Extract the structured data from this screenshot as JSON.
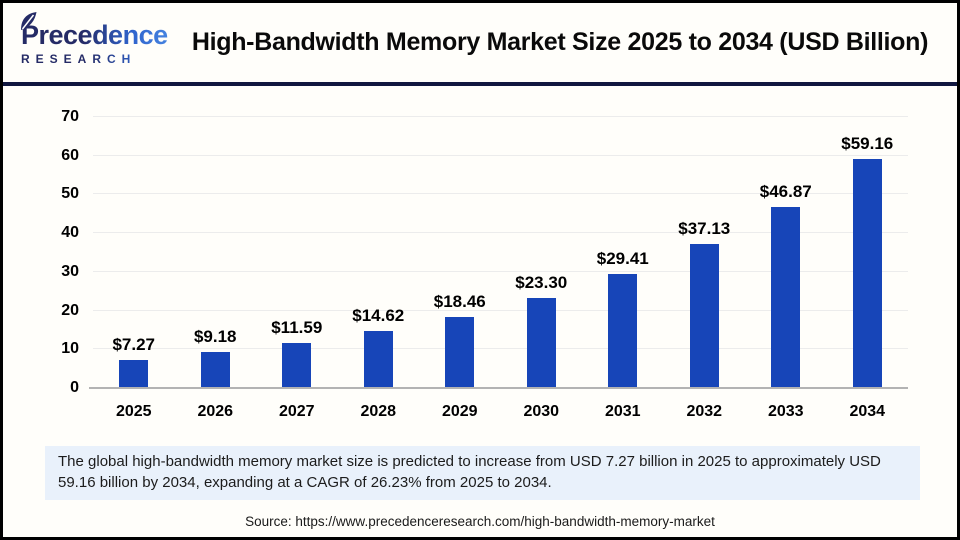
{
  "header": {
    "logo_line1": "Precedence",
    "logo_line2": "RESEARCH",
    "title": "High-Bandwidth Memory Market Size 2025 to 2034 (USD Billion)"
  },
  "chart_data": {
    "type": "bar",
    "title": "High-Bandwidth Memory Market Size 2025 to 2034 (USD Billion)",
    "categories": [
      "2025",
      "2026",
      "2027",
      "2028",
      "2029",
      "2030",
      "2031",
      "2032",
      "2033",
      "2034"
    ],
    "values": [
      7.27,
      9.18,
      11.59,
      14.62,
      18.46,
      23.3,
      29.41,
      37.13,
      46.87,
      59.16
    ],
    "value_labels": [
      "$7.27",
      "$9.18",
      "$11.59",
      "$14.62",
      "$18.46",
      "$23.30",
      "$29.41",
      "$37.13",
      "$46.87",
      "$59.16"
    ],
    "xlabel": "",
    "ylabel": "",
    "ylim": [
      0,
      70
    ],
    "yticks": [
      0,
      10,
      20,
      30,
      40,
      50,
      60,
      70
    ],
    "grid": true,
    "legend": false,
    "bar_color": "#1745b8",
    "gridline_color": "#ececec",
    "axis_line_color": "#b3b3b3"
  },
  "colors": {
    "brand_navy": "#252b66",
    "brand_blue": "#4583e0",
    "divider_navy": "#11173f",
    "summary_background": "#e9f1fb"
  },
  "summary": {
    "text": "The global high-bandwidth memory market size is predicted to increase from USD 7.27 billion in 2025 to approximately USD 59.16 billion by 2034, expanding at a CAGR of 26.23% from 2025 to 2034."
  },
  "source": {
    "text": "Source: https://www.precedenceresearch.com/high-bandwidth-memory-market"
  }
}
